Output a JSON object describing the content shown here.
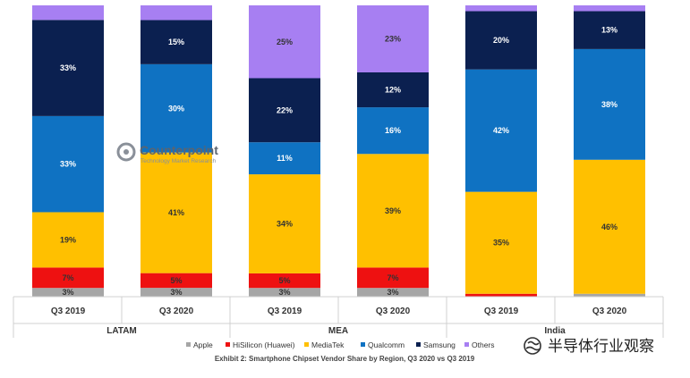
{
  "chart_data": {
    "type": "bar",
    "stacked": true,
    "percent": true,
    "title": "Exhibit 2: Smartphone Chipset Vendor Share by Region, Q3 2020 vs Q3 2019",
    "categories": [
      "Q3 2019",
      "Q3 2020",
      "Q3 2019",
      "Q3 2020",
      "Q3 2019",
      "Q3 2020"
    ],
    "groups": [
      {
        "name": "LATAM",
        "categories": [
          "Q3 2019",
          "Q3 2020"
        ]
      },
      {
        "name": "MEA",
        "categories": [
          "Q3 2019",
          "Q3 2020"
        ]
      },
      {
        "name": "India",
        "categories": [
          "Q3 2019",
          "Q3 2020"
        ]
      }
    ],
    "series": [
      {
        "name": "Apple",
        "color": "#a6a6a6",
        "values": [
          3,
          3,
          3,
          3,
          0,
          1
        ]
      },
      {
        "name": "HiSilicon (Huawei)",
        "color": "#ee1111",
        "values": [
          7,
          5,
          5,
          7,
          1,
          0
        ]
      },
      {
        "name": "MediaTek",
        "color": "#ffc000",
        "values": [
          19,
          41,
          34,
          39,
          35,
          46
        ]
      },
      {
        "name": "Qualcomm",
        "color": "#0f72c2",
        "values": [
          33,
          30,
          11,
          16,
          42,
          38
        ]
      },
      {
        "name": "Samsung",
        "color": "#0b2050",
        "values": [
          33,
          15,
          22,
          12,
          20,
          13
        ]
      },
      {
        "name": "Others",
        "color": "#a77ff2",
        "values": [
          5,
          5,
          25,
          23,
          2,
          2
        ]
      }
    ],
    "data_labels": [
      [
        "3%",
        "3%",
        "3%",
        "3%",
        "",
        ""
      ],
      [
        "7%",
        "5%",
        "5%",
        "7%",
        "",
        ""
      ],
      [
        "19%",
        "41%",
        "34%",
        "39%",
        "35%",
        "46%"
      ],
      [
        "33%",
        "30%",
        "11%",
        "16%",
        "42%",
        "38%"
      ],
      [
        "33%",
        "15%",
        "22%",
        "12%",
        "20%",
        "13%"
      ],
      [
        "",
        "",
        "25%",
        "23%",
        "",
        ""
      ]
    ],
    "label_colors": [
      "#333333",
      "#333333",
      "#333333",
      "#ffffff",
      "#ffffff",
      "#333333"
    ],
    "ylim": [
      0,
      100
    ],
    "grid": false,
    "legend_position": "bottom"
  },
  "watermark": {
    "brand": "Counterpoint",
    "tagline": "Technology Market Research"
  },
  "wechat_watermark": "半导体行业观察"
}
